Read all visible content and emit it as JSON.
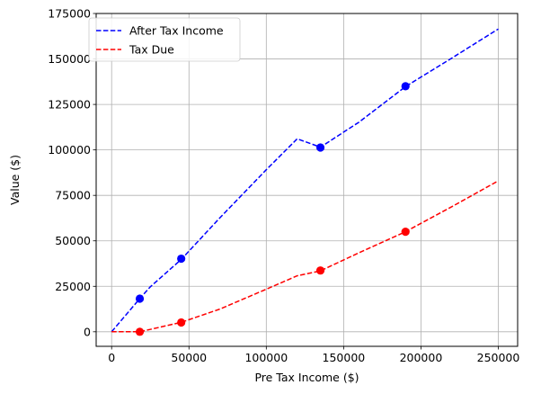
{
  "chart_data": {
    "type": "line",
    "xlabel": "Pre Tax Income ($)",
    "ylabel": "Value ($)",
    "xlim": [
      -10000,
      262500
    ],
    "ylim": [
      -8000,
      175000
    ],
    "xticks": [
      0,
      50000,
      100000,
      150000,
      200000,
      250000
    ],
    "xtick_labels": [
      "0",
      "50000",
      "100000",
      "150000",
      "200000",
      "250000"
    ],
    "yticks": [
      0,
      25000,
      50000,
      75000,
      100000,
      125000,
      150000,
      175000
    ],
    "ytick_labels": [
      "0",
      "25000",
      "50000",
      "75000",
      "100000",
      "125000",
      "150000",
      "175000"
    ],
    "grid": true,
    "legend_position": "top-left",
    "series": [
      {
        "name": "After Tax Income",
        "color": "#0000ff",
        "line_style": "dashed",
        "x": [
          0,
          18200,
          25000,
          45000,
          70000,
          100000,
          120000,
          135000,
          160000,
          190000,
          220000,
          250000
        ],
        "y": [
          0,
          18200,
          24700,
          39800,
          62700,
          89100,
          106100,
          101500,
          115300,
          134800,
          150500,
          166500
        ],
        "markers": [
          {
            "x": 18200,
            "y": 18200
          },
          {
            "x": 45000,
            "y": 40200
          },
          {
            "x": 135000,
            "y": 101300
          },
          {
            "x": 190000,
            "y": 135000
          }
        ]
      },
      {
        "name": "Tax Due",
        "color": "#ff0000",
        "line_style": "dashed",
        "x": [
          0,
          18200,
          25000,
          45000,
          70000,
          100000,
          120000,
          135000,
          160000,
          190000,
          220000,
          250000
        ],
        "y": [
          0,
          0,
          1300,
          5200,
          12500,
          23400,
          30800,
          33500,
          43500,
          55000,
          68800,
          83000
        ],
        "markers": [
          {
            "x": 18200,
            "y": 0
          },
          {
            "x": 45000,
            "y": 5100
          },
          {
            "x": 135000,
            "y": 33700
          },
          {
            "x": 190000,
            "y": 55000
          }
        ]
      }
    ]
  }
}
